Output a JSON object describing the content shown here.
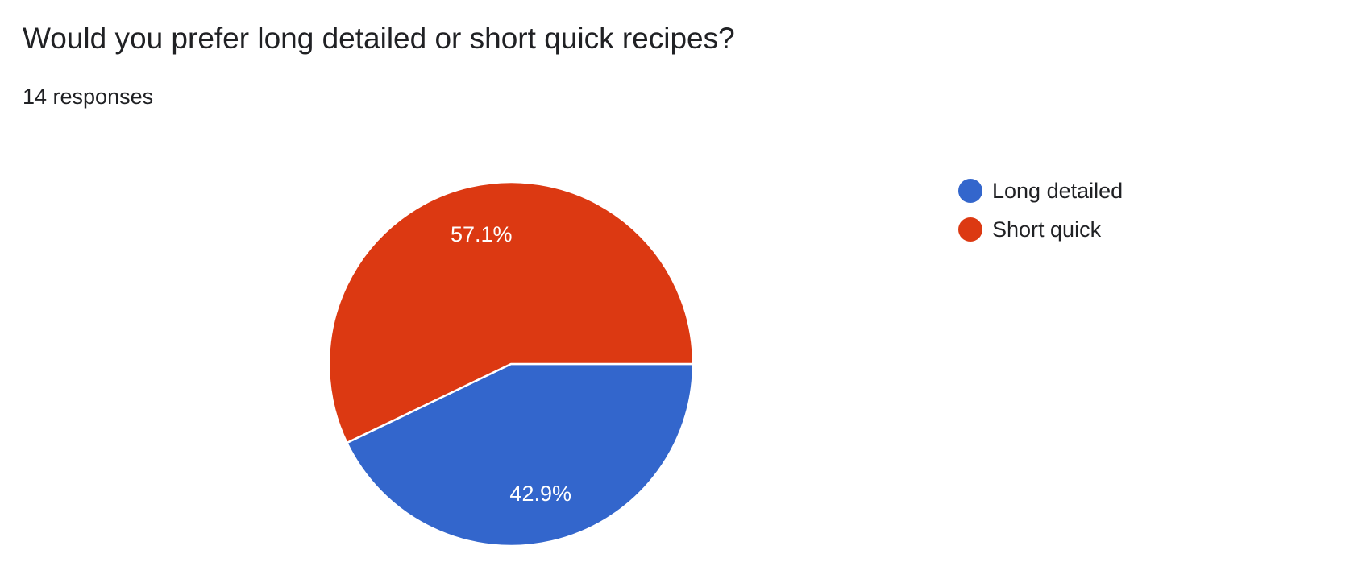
{
  "header": {
    "question": "Would you prefer long detailed or short quick recipes?",
    "responses": "14 responses"
  },
  "chart_data": {
    "type": "pie",
    "title": "Would you prefer long detailed or short quick recipes?",
    "total_responses": 14,
    "slices": [
      {
        "label": "Long detailed",
        "count": 6,
        "percent": 42.9,
        "percent_label": "42.9%",
        "color": "#3366cc"
      },
      {
        "label": "Short quick",
        "count": 8,
        "percent": 57.1,
        "percent_label": "57.1%",
        "color": "#dc3912"
      }
    ],
    "legend": {
      "position": "right",
      "items": [
        {
          "label": "Long detailed",
          "color": "#3366cc"
        },
        {
          "label": "Short quick",
          "color": "#dc3912"
        }
      ]
    }
  }
}
